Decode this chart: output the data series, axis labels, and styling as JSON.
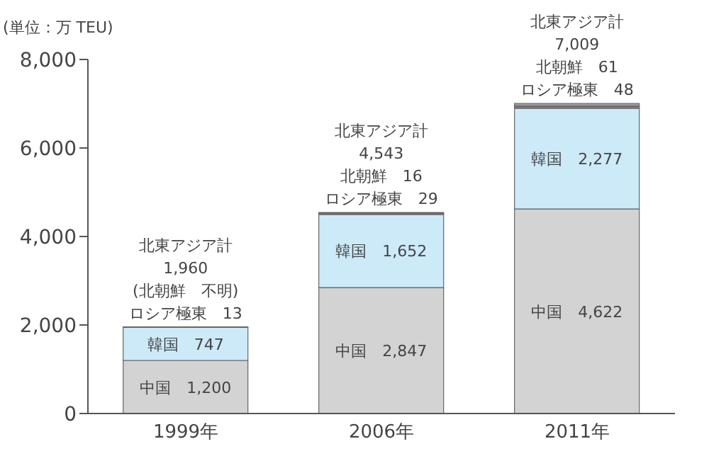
{
  "chart_data": {
    "type": "bar",
    "stacked": true,
    "ylabel": "(単位：万 TEU)",
    "categories": [
      "1999年",
      "2006年",
      "2011年"
    ],
    "series": [
      {
        "name": "中国",
        "color": "#d3d3d3",
        "values": [
          1200,
          2847,
          4622
        ],
        "value_labels": [
          "1,200",
          "2,847",
          "4,622"
        ]
      },
      {
        "name": "韓国",
        "color": "#cdeaf9",
        "values": [
          747,
          1652,
          2277
        ],
        "value_labels": [
          "747",
          "1,652",
          "2,277"
        ]
      },
      {
        "name": "ロシア極東",
        "color": "#7d7d7d",
        "values": [
          13,
          29,
          48
        ],
        "value_labels": [
          "13",
          "29",
          "48"
        ]
      },
      {
        "name": "北朝鮮",
        "color": "#9a9a9a",
        "values": [
          null,
          16,
          61
        ],
        "value_labels": [
          null,
          "16",
          "61"
        ]
      }
    ],
    "totals": [
      "1,960",
      "4,543",
      "7,009"
    ],
    "annotations": [
      "北東アジア計",
      "北東アジア計",
      "北東アジア計",
      "(北朝鮮　不明)"
    ],
    "ylim": [
      0,
      8000
    ],
    "yticks": [
      {
        "value": 0,
        "label": "0"
      },
      {
        "value": 2000,
        "label": "2,000"
      },
      {
        "value": 4000,
        "label": "4,000"
      },
      {
        "value": 6000,
        "label": "6,000"
      },
      {
        "value": 8000,
        "label": "8,000"
      }
    ],
    "grid": false,
    "legend": false
  }
}
